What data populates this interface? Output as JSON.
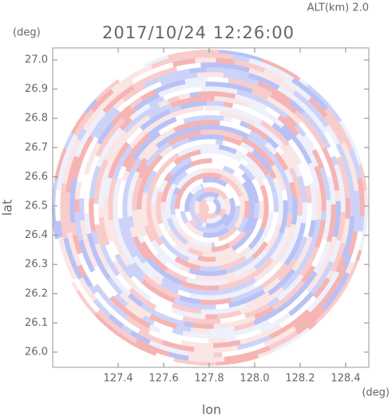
{
  "chart_data": {
    "type": "ppi",
    "title": "2017/10/24 12:26:00",
    "subtitle": "ALT(km) 2.0",
    "x_label": "lon",
    "y_label": "lat",
    "x_unit": "(deg)",
    "y_unit": "(deg)",
    "xlim": [
      127.112,
      128.502
    ],
    "ylim": [
      25.948,
      27.041
    ],
    "xticks": [
      127.4,
      127.6,
      127.8,
      {
        "value": 128,
        "label": "128.0"
      },
      128.2,
      128.4
    ],
    "yticks": [
      {
        "value": 26,
        "label": "26.0"
      },
      26.1,
      26.2,
      26.3,
      26.4,
      26.5,
      26.6,
      26.7,
      26.8,
      26.9,
      {
        "value": 27,
        "label": "27.0"
      }
    ]
  }
}
